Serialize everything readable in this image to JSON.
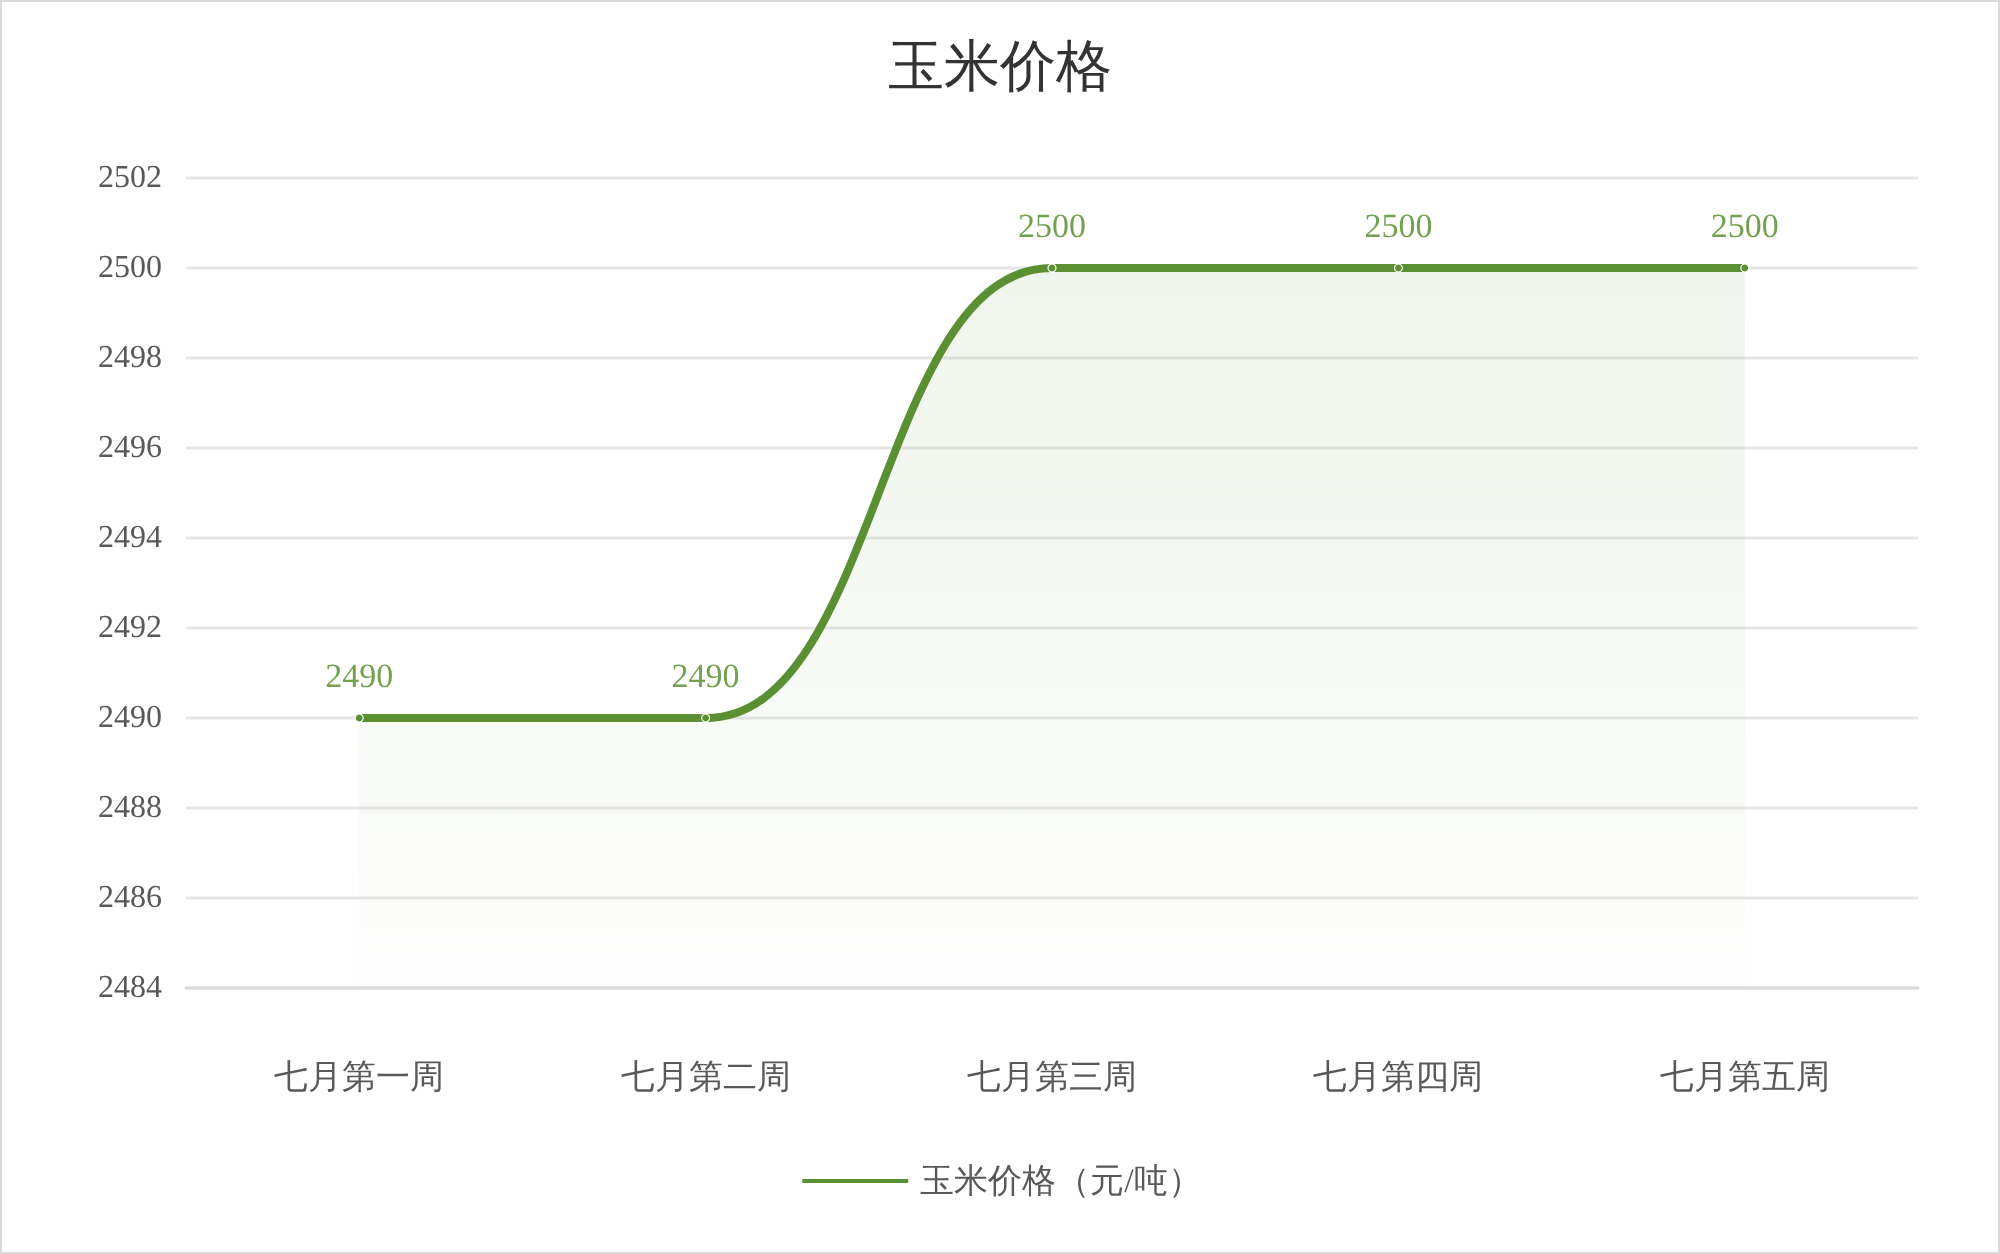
{
  "chart_data": {
    "type": "area",
    "title": "玉米价格",
    "categories": [
      "七月第一周",
      "七月第二周",
      "七月第三周",
      "七月第四周",
      "七月第五周"
    ],
    "series": [
      {
        "name": "玉米价格（元/吨）",
        "color": "#5a9032",
        "values": [
          2490,
          2490,
          2500,
          2500,
          2500
        ]
      }
    ],
    "ylim": [
      2484,
      2502
    ],
    "yticks": [
      2484,
      2486,
      2488,
      2490,
      2492,
      2494,
      2496,
      2498,
      2500,
      2502
    ],
    "grid": "y",
    "legend": "bottom",
    "marker": "circle",
    "line_style": "solid",
    "data_labels": true
  }
}
